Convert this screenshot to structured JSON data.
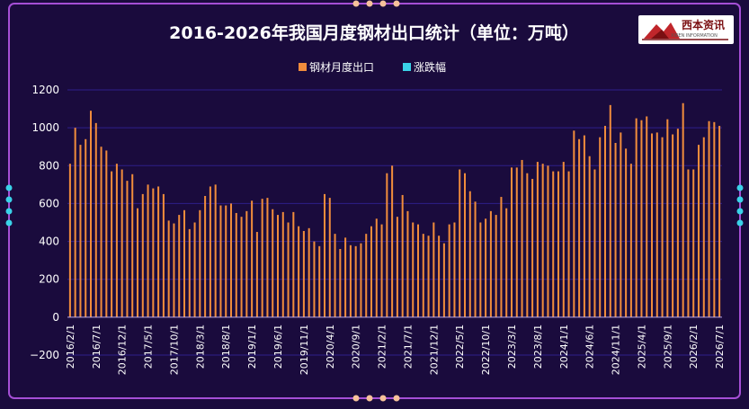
{
  "logo": {
    "text": "西本资讯",
    "subtext": "XIBEN INFORMATION"
  },
  "chart_data": {
    "type": "bar",
    "title": "2016-2026年我国月度钢材出口统计（单位：万吨）",
    "legend_position": "top-center",
    "grid": true,
    "ylim": [
      -200,
      1200
    ],
    "yticks": [
      "−200",
      "0",
      "200",
      "400",
      "600",
      "800",
      "1000",
      "1200"
    ],
    "colors": {
      "background": "#1a0b3d",
      "bar": "#f08c3c",
      "growth": "#3ad2e8",
      "axis_text": "#ffffff",
      "grid": "#2e1f8a",
      "frame": "#a54fd6",
      "dots_top": "#f6c29a",
      "dots_side": "#3ad2e8"
    },
    "series": [
      {
        "name": "钢材月度出口",
        "color": "#f08c3c",
        "values": [
          810,
          1000,
          910,
          940,
          1090,
          1025,
          900,
          880,
          770,
          810,
          780,
          720,
          755,
          575,
          650,
          700,
          680,
          690,
          650,
          510,
          495,
          540,
          565,
          465,
          500,
          565,
          640,
          690,
          700,
          590,
          590,
          600,
          550,
          530,
          560,
          615,
          450,
          625,
          630,
          570,
          540,
          555,
          500,
          555,
          480,
          455,
          470,
          400,
          375,
          650,
          630,
          440,
          360,
          420,
          380,
          375,
          390,
          440,
          480,
          520,
          490,
          760,
          800,
          530,
          645,
          560,
          500,
          490,
          440,
          430,
          500,
          430,
          390,
          490,
          500,
          780,
          760,
          665,
          610,
          500,
          520,
          560,
          540,
          635,
          575,
          790,
          790,
          830,
          760,
          730,
          820,
          810,
          800,
          770,
          770,
          820,
          770,
          985,
          940,
          960,
          850,
          780,
          950,
          1010,
          1120,
          920,
          975,
          890,
          810,
          1050,
          1040,
          1060,
          970,
          975,
          950,
          1045,
          965,
          995,
          1130,
          780,
          780,
          910,
          950,
          1035,
          1030,
          1010
        ]
      },
      {
        "name": "涨跌幅",
        "color": "#3ad2e8",
        "values": []
      }
    ],
    "x_tick_labels": [
      "2016/2/1",
      "2016/7/1",
      "2016/12/1",
      "2017/5/1",
      "2017/10/1",
      "2018/3/1",
      "2018/8/1",
      "2019/1/1",
      "2019/6/1",
      "2019/11/1",
      "2020/4/1",
      "2020/9/1",
      "2021/2/1",
      "2021/7/1",
      "2021/12/1",
      "2022/5/1",
      "2022/10/1",
      "2023/3/1",
      "2023/8/1",
      "2024/1/1",
      "2024/6/1",
      "2024/11/1",
      "2025/4/1",
      "2025/9/1",
      "2026/2/1",
      "2026/7/1"
    ]
  }
}
